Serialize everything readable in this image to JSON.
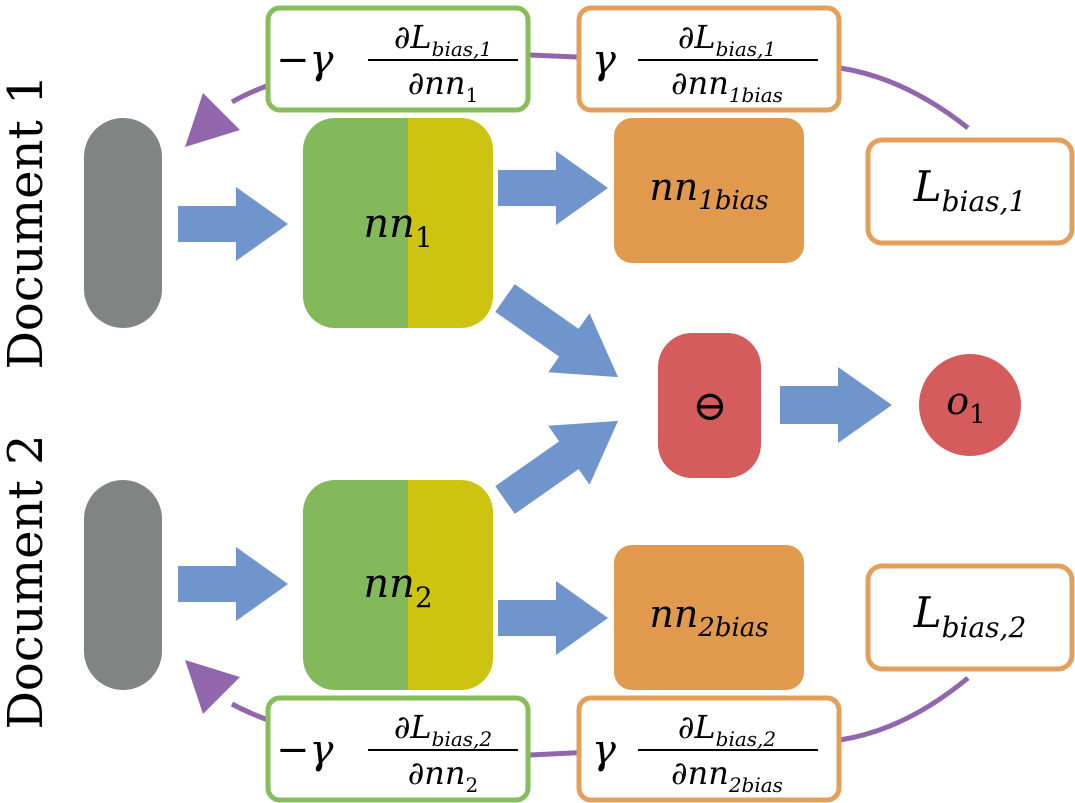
{
  "labels": {
    "document_1": "Document 1",
    "document_2": "Document 2"
  },
  "nodes": {
    "nn1": {
      "base": "nn",
      "sub": "1"
    },
    "nn2": {
      "base": "nn",
      "sub": "2"
    },
    "nn1_bias": {
      "base": "nn",
      "sub": "1bias"
    },
    "nn2_bias": {
      "base": "nn",
      "sub": "2bias"
    },
    "l_bias_1": {
      "base": "L",
      "sub": "bias,1"
    },
    "l_bias_2": {
      "base": "L",
      "sub": "bias,2"
    },
    "minus_op": {
      "symbol": "⊖"
    },
    "output": {
      "base": "o",
      "sub": "1"
    }
  },
  "gradients": {
    "g1_neg": {
      "prefix": "−γ",
      "num_base": "∂L",
      "num_sub": "bias,1",
      "den_base": "∂nn",
      "den_sub": "1"
    },
    "g1_pos": {
      "prefix": "γ",
      "num_base": "∂L",
      "num_sub": "bias,1",
      "den_base": "∂nn",
      "den_sub": "1bias"
    },
    "g2_neg": {
      "prefix": "−γ",
      "num_base": "∂L",
      "num_sub": "bias,2",
      "den_base": "∂nn",
      "den_sub": "2"
    },
    "g2_pos": {
      "prefix": "γ",
      "num_base": "∂L",
      "num_sub": "bias,2",
      "den_base": "∂nn",
      "den_sub": "2bias"
    }
  },
  "colors": {
    "arrow_blue": "#7094cc",
    "feedback_purple": "#9166ad",
    "input_gray": "#808584",
    "nn_green": "#83b95b",
    "nn_yellow": "#cdc412",
    "bias_orange": "#e0994d",
    "op_red": "#d45c5c",
    "box_green_border": "#86bf5a",
    "box_orange_border": "#e4a05b"
  }
}
